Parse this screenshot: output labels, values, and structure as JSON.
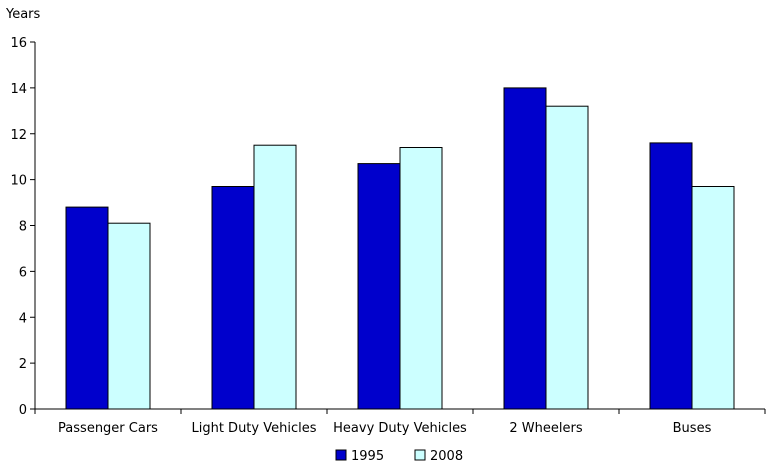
{
  "chart_data": {
    "type": "bar",
    "title": "",
    "ylabel": "Years",
    "xlabel": "",
    "ylim": [
      0,
      16
    ],
    "yticks": [
      "0",
      "2",
      "4",
      "6",
      "8",
      "10",
      "12",
      "14",
      "16"
    ],
    "categories": [
      "Passenger Cars",
      "Light Duty Vehicles",
      "Heavy Duty Vehicles",
      "2 Wheelers",
      "Buses"
    ],
    "series": [
      {
        "name": "1995",
        "color": "#0000CC",
        "values": [
          8.8,
          9.7,
          10.7,
          14.0,
          11.6
        ]
      },
      {
        "name": "2008",
        "color": "#CCFFFF",
        "values": [
          8.1,
          11.5,
          11.4,
          13.2,
          9.7
        ]
      }
    ],
    "legend_position": "bottom",
    "grid": false
  }
}
